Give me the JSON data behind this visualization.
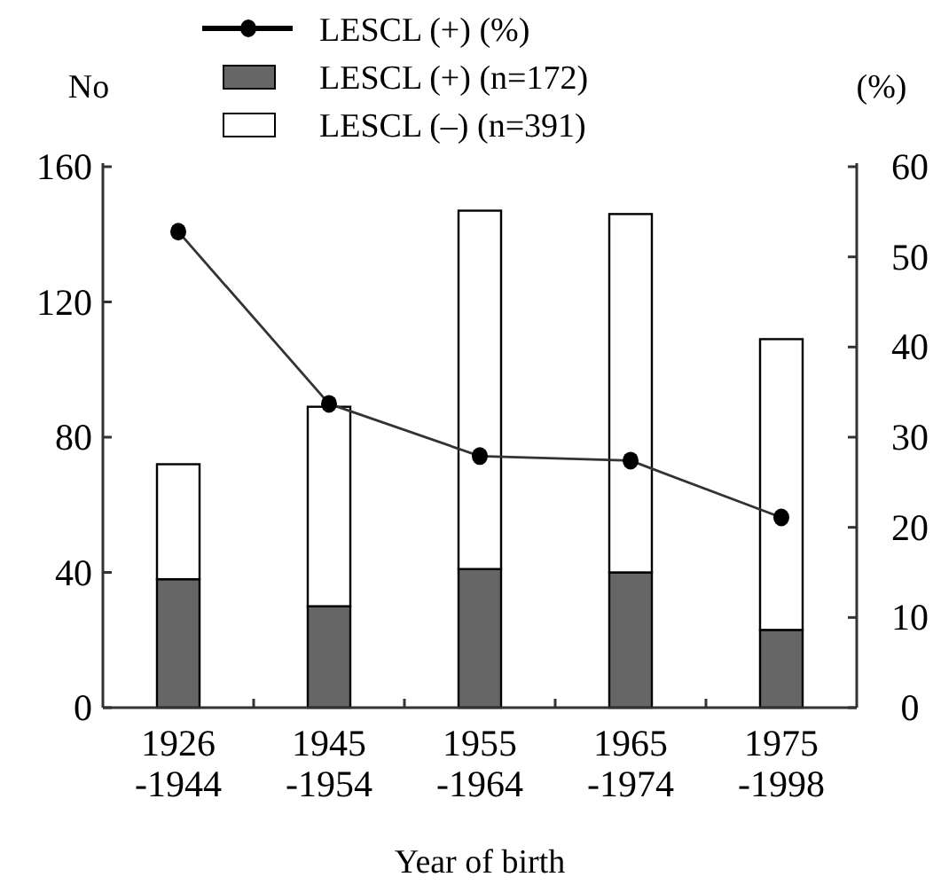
{
  "chart_data": {
    "type": "bar",
    "xlabel": "Year of birth",
    "ylabel": "No",
    "y2label": "(%)",
    "categories": [
      "1926\n-1944",
      "1945\n-1954",
      "1955\n-1964",
      "1965\n-1974",
      "1975\n-1998"
    ],
    "stacked": true,
    "series": [
      {
        "name": "LESCL (+) (%)",
        "type": "line",
        "axis": "y2",
        "color": "#333333",
        "marker": "circle",
        "values": [
          52.8,
          33.7,
          27.9,
          27.4,
          21.1
        ]
      },
      {
        "name": "LESCL (+) (n=172)",
        "color": "#666666",
        "values": [
          38,
          30,
          41,
          40,
          23
        ]
      },
      {
        "name": "LESCL (–) (n=391)",
        "color": "#ffffff",
        "values": [
          34,
          59,
          106,
          106,
          86
        ]
      }
    ],
    "ylim": [
      0,
      160
    ],
    "yticks": [
      0,
      40,
      80,
      120,
      160
    ],
    "y2lim": [
      0,
      60
    ],
    "y2ticks": [
      0,
      10,
      20,
      30,
      40,
      50,
      60
    ],
    "legend": "top",
    "grid": false
  }
}
